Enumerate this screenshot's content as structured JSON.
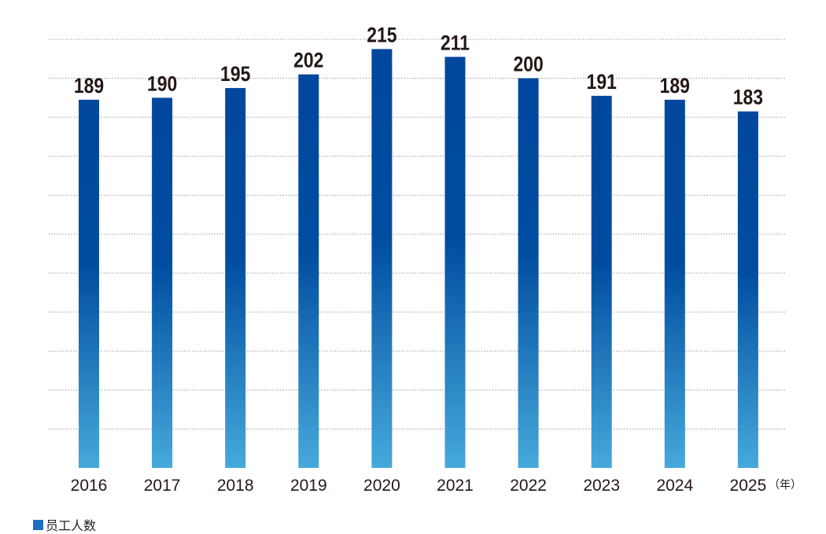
{
  "chart_data": {
    "type": "bar",
    "categories": [
      "2016",
      "2017",
      "2018",
      "2019",
      "2020",
      "2021",
      "2022",
      "2023",
      "2024",
      "2025"
    ],
    "series": [
      {
        "name": "员工人数",
        "values": [
          189,
          190,
          195,
          202,
          215,
          211,
          200,
          191,
          189,
          183
        ]
      }
    ],
    "data_labels": [
      "189",
      "190",
      "195",
      "202",
      "215",
      "211",
      "200",
      "191",
      "189",
      "183"
    ],
    "x_unit": "（年）",
    "ylim": [
      0,
      220
    ],
    "grid": "horizontal dotted",
    "legend": "bottom-left"
  },
  "colors": {
    "bar_top": "#00479d",
    "bar_mid": "#004da0",
    "bar_bottom": "#46a9db",
    "legend": "#1f6fbf",
    "grid": "#9a9a9a",
    "label": "#231815"
  }
}
